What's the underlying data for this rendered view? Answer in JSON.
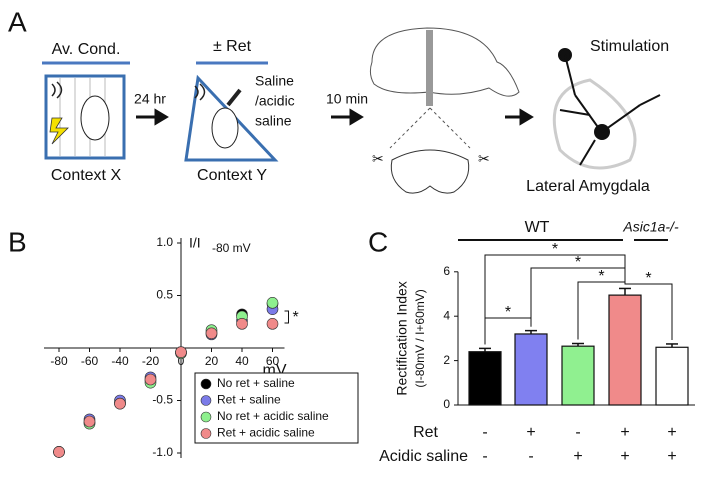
{
  "panel_a": {
    "letter": "A",
    "step1": "Av. Cond.",
    "context1": "Context X",
    "delay1": "24 hr",
    "step2": "± Ret",
    "injection": [
      "Saline",
      "/acidic",
      "saline"
    ],
    "context2": "Context Y",
    "delay2": "10 min",
    "stimulation": "Stimulation",
    "region": "Lateral Amygdala"
  },
  "panel_b": {
    "letter": "B"
  },
  "panel_c": {
    "letter": "C"
  },
  "chart_data": [
    {
      "type": "scatter",
      "ylabel": "I/I",
      "ylabel_sub": "-80 mV",
      "xlabel": "mV",
      "x": [
        -80,
        -60,
        -40,
        -20,
        0,
        20,
        40,
        60
      ],
      "series": [
        {
          "name": "No ret + saline",
          "color": "#000000",
          "values": [
            -0.99,
            -0.71,
            -0.52,
            -0.31,
            -0.04,
            0.15,
            0.32,
            0.42
          ]
        },
        {
          "name": "Ret + saline",
          "color": "#7b7be8",
          "values": [
            -0.99,
            -0.68,
            -0.5,
            -0.28,
            -0.04,
            0.13,
            0.26,
            0.37
          ]
        },
        {
          "name": "No ret + acidic saline",
          "color": "#8ef08e",
          "values": [
            -0.99,
            -0.72,
            -0.53,
            -0.33,
            -0.05,
            0.17,
            0.3,
            0.43
          ]
        },
        {
          "name": "Ret + acidic saline",
          "color": "#f08a8a",
          "values": [
            -0.99,
            -0.7,
            -0.53,
            -0.3,
            -0.04,
            0.14,
            0.23,
            0.23
          ]
        }
      ],
      "xlim": [
        -80,
        60
      ],
      "xticks": [
        -80,
        -60,
        -40,
        -20,
        0,
        20,
        40,
        60
      ],
      "ylim": [
        -1,
        1
      ],
      "yticks": [
        {
          "value": -1,
          "label": "-1.0"
        },
        -0.5,
        0.5,
        {
          "value": 1,
          "label": "1.0"
        }
      ],
      "annotation": "*",
      "legend": "lower right"
    },
    {
      "type": "bar",
      "ylabel": "Rectification Index",
      "ylabel2": "(I-80mV / I+60mV)",
      "values": [
        2.4,
        3.2,
        2.65,
        4.95,
        2.6
      ],
      "errors": [
        0.15,
        0.15,
        0.12,
        0.3,
        0.15
      ],
      "colors": [
        "#000000",
        "#8080f0",
        "#90f090",
        "#f08a8a",
        "#ffffff"
      ],
      "ylim": [
        0,
        6
      ],
      "yticks": [
        0,
        2,
        4,
        6
      ],
      "rows": [
        {
          "label": "Ret",
          "marks": [
            "-",
            "+",
            "-",
            "+",
            "+"
          ]
        },
        {
          "label": "Acidic saline",
          "marks": [
            "-",
            "-",
            "+",
            "+",
            "+"
          ]
        }
      ],
      "groups": [
        "WT",
        "Asic1a-/-"
      ],
      "annotations": [
        "*",
        "*",
        "*",
        "*",
        "*"
      ]
    }
  ]
}
